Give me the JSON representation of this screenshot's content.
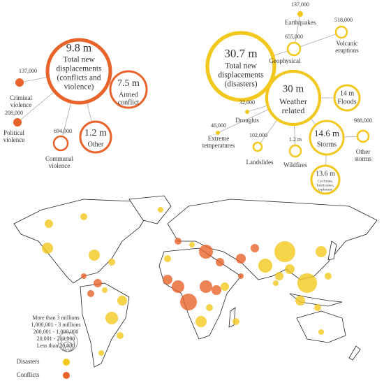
{
  "conflicts": {
    "nodes": [
      {
        "value": "9.8 m",
        "label": [
          "Total new",
          "displacements",
          "(conflicts and",
          "violence)"
        ]
      },
      {
        "value": "7.5 m",
        "label": [
          "Armed",
          "conflict"
        ]
      },
      {
        "value": "1.2 m",
        "label": [
          "Other"
        ]
      },
      {
        "value": "137,000",
        "label": [
          "Criminal",
          "violence"
        ]
      },
      {
        "value": "208,000",
        "label": [
          "Political",
          "violence"
        ]
      },
      {
        "value": "694,000",
        "label": [
          "Communal",
          "violence"
        ]
      }
    ]
  },
  "disasters": {
    "nodes": [
      {
        "value": "30.7 m",
        "label": [
          "Total new",
          "displacements",
          "(disasters)"
        ]
      },
      {
        "value": "30 m",
        "label": [
          "Weather",
          "related"
        ]
      },
      {
        "value": "655,000",
        "label": [
          "Geophysical"
        ]
      },
      {
        "value": "137,000",
        "label": [
          "Earthquakes"
        ]
      },
      {
        "value": "518,000",
        "label": [
          "Volcanic",
          "eruptions"
        ]
      },
      {
        "value": "14 m",
        "label": [
          "Floods"
        ]
      },
      {
        "value": "32,000",
        "label": [
          "Droughts"
        ]
      },
      {
        "value": "46,000",
        "label": [
          "Extreme",
          "temperatures"
        ]
      },
      {
        "value": "102,000",
        "label": [
          "Landslides"
        ]
      },
      {
        "value": "1.2 m",
        "label": [
          "Wildfires"
        ]
      },
      {
        "value": "14.6 m",
        "label": [
          "Storms"
        ]
      },
      {
        "value": "988,000",
        "label": [
          "Other",
          "storms"
        ]
      },
      {
        "value": "13.6 m",
        "label": [
          "Cyclones,",
          "hurricanes,",
          "typhoons"
        ]
      }
    ]
  },
  "legend": {
    "sizes": [
      "More than 3 millions",
      "1,000,001 - 3 millions",
      "200,001 - 1,000,000",
      "20,001 - 200,000",
      "Less than 20,000"
    ],
    "colors": [
      "Disasters",
      "Conflicts"
    ]
  }
}
